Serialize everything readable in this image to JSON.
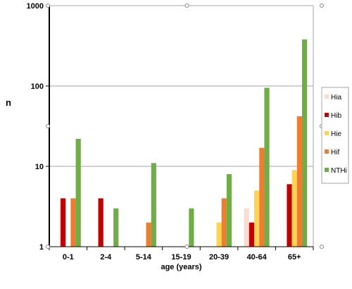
{
  "chart_data": {
    "type": "bar",
    "title": "",
    "xlabel": "age (years)",
    "ylabel": "n",
    "y_scale": "log",
    "ylim": [
      1,
      1000
    ],
    "y_ticks": [
      "1",
      "10",
      "100",
      "1000"
    ],
    "grid": "horizontal",
    "legend_position": "right",
    "categories": [
      "0-1",
      "2-4",
      "5-14",
      "15-19",
      "20-39",
      "40-64",
      "65+"
    ],
    "series": [
      {
        "name": "Hia",
        "color": "#f8dccf",
        "values": [
          null,
          null,
          null,
          null,
          null,
          3,
          null
        ]
      },
      {
        "name": "Hib",
        "color": "#c00000",
        "values": [
          4,
          4,
          null,
          null,
          null,
          2,
          6
        ]
      },
      {
        "name": "Hie",
        "color": "#ffd44f",
        "values": [
          null,
          null,
          null,
          null,
          2,
          5,
          9
        ]
      },
      {
        "name": "Hif",
        "color": "#ed7d31",
        "values": [
          4,
          null,
          2,
          null,
          4,
          17,
          42
        ]
      },
      {
        "name": "NTHi",
        "color": "#70ad47",
        "values": [
          22,
          3,
          11,
          3,
          8,
          95,
          380
        ]
      }
    ]
  }
}
